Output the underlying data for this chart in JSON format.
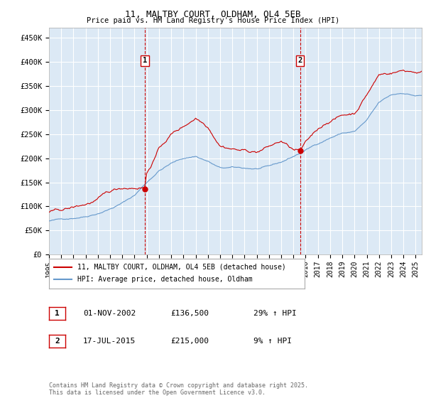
{
  "title": "11, MALTBY COURT, OLDHAM, OL4 5EB",
  "subtitle": "Price paid vs. HM Land Registry's House Price Index (HPI)",
  "ylim": [
    0,
    470000
  ],
  "yticks": [
    0,
    50000,
    100000,
    150000,
    200000,
    250000,
    300000,
    350000,
    400000,
    450000
  ],
  "ytick_labels": [
    "£0",
    "£50K",
    "£100K",
    "£150K",
    "£200K",
    "£250K",
    "£300K",
    "£350K",
    "£400K",
    "£450K"
  ],
  "background_color": "#dce9f5",
  "grid_color": "#ffffff",
  "line1_color": "#cc0000",
  "line2_color": "#6699cc",
  "marker_box_color": "#cc0000",
  "vline_color": "#cc0000",
  "ann1_year": 2002.83,
  "ann1_price": 136500,
  "ann2_year": 2015.54,
  "ann2_price": 215000,
  "legend_line1": "11, MALTBY COURT, OLDHAM, OL4 5EB (detached house)",
  "legend_line2": "HPI: Average price, detached house, Oldham",
  "note1_label": "1",
  "note1_date": "01-NOV-2002",
  "note1_price": "£136,500",
  "note1_hpi": "29% ↑ HPI",
  "note2_label": "2",
  "note2_date": "17-JUL-2015",
  "note2_price": "£215,000",
  "note2_hpi": "9% ↑ HPI",
  "footer": "Contains HM Land Registry data © Crown copyright and database right 2025.\nThis data is licensed under the Open Government Licence v3.0."
}
